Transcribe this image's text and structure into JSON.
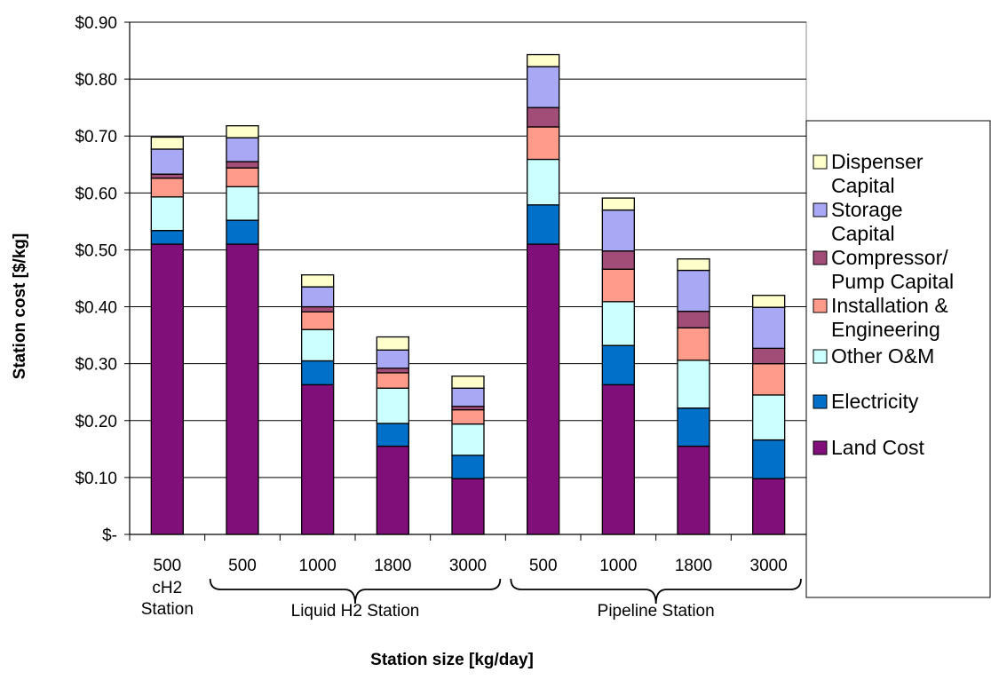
{
  "chart_data": {
    "type": "bar",
    "stacked": true,
    "xlabel": "Station size [kg/day]",
    "ylabel": "Station cost [$/kg]",
    "ylim": [
      0,
      0.9
    ],
    "yticks": [
      0.0,
      0.1,
      0.2,
      0.3,
      0.4,
      0.5,
      0.6,
      0.7,
      0.8,
      0.9
    ],
    "ytick_labels": [
      "$-",
      "$0.10",
      "$0.20",
      "$0.30",
      "$0.40",
      "$0.50",
      "$0.60",
      "$0.70",
      "$0.80",
      "$0.90"
    ],
    "grid": true,
    "legend_position": "right",
    "categories": [
      "500",
      "500",
      "1000",
      "1800",
      "3000",
      "500",
      "1000",
      "1800",
      "3000"
    ],
    "groups": [
      {
        "label_lines": [
          "cH2",
          "Station"
        ],
        "start": 0,
        "end": 0,
        "brace": false
      },
      {
        "label_lines": [
          "Liquid H2 Station"
        ],
        "start": 1,
        "end": 4,
        "brace": true
      },
      {
        "label_lines": [
          "Pipeline Station"
        ],
        "start": 5,
        "end": 8,
        "brace": true
      }
    ],
    "series": [
      {
        "name": "Land Cost",
        "color": "#800f7a",
        "values": [
          0.51,
          0.51,
          0.263,
          0.155,
          0.098,
          0.51,
          0.263,
          0.155,
          0.098
        ]
      },
      {
        "name": "Electricity",
        "color": "#0070c8",
        "values": [
          0.024,
          0.042,
          0.042,
          0.04,
          0.041,
          0.069,
          0.069,
          0.067,
          0.068
        ]
      },
      {
        "name": "Other O&M",
        "color": "#ccffff",
        "values": [
          0.059,
          0.059,
          0.055,
          0.062,
          0.055,
          0.08,
          0.077,
          0.084,
          0.079
        ]
      },
      {
        "name": "Installation & Engineering",
        "color": "#ff9b8a",
        "values": [
          0.033,
          0.033,
          0.031,
          0.027,
          0.025,
          0.057,
          0.057,
          0.057,
          0.055
        ]
      },
      {
        "name": "Compressor/ Pump Capital",
        "color": "#a14d78",
        "values": [
          0.007,
          0.011,
          0.009,
          0.008,
          0.006,
          0.034,
          0.032,
          0.029,
          0.027
        ]
      },
      {
        "name": "Storage Capital",
        "color": "#a8a8f5",
        "values": [
          0.044,
          0.042,
          0.035,
          0.032,
          0.032,
          0.072,
          0.072,
          0.072,
          0.072
        ]
      },
      {
        "name": "Dispenser Capital",
        "color": "#ffffcc",
        "values": [
          0.021,
          0.021,
          0.021,
          0.023,
          0.021,
          0.021,
          0.021,
          0.02,
          0.021
        ]
      }
    ],
    "legend": [
      {
        "lines": [
          "Dispenser",
          "Capital"
        ],
        "series": 6
      },
      {
        "lines": [
          "Storage",
          "Capital"
        ],
        "series": 5
      },
      {
        "lines": [
          "Compressor/",
          "Pump Capital"
        ],
        "series": 4
      },
      {
        "lines": [
          "Installation &",
          "Engineering"
        ],
        "series": 3
      },
      {
        "lines": [
          "Other O&M"
        ],
        "series": 2
      },
      {
        "lines": [
          "Electricity"
        ],
        "series": 1
      },
      {
        "lines": [
          "Land Cost"
        ],
        "series": 0
      }
    ]
  }
}
